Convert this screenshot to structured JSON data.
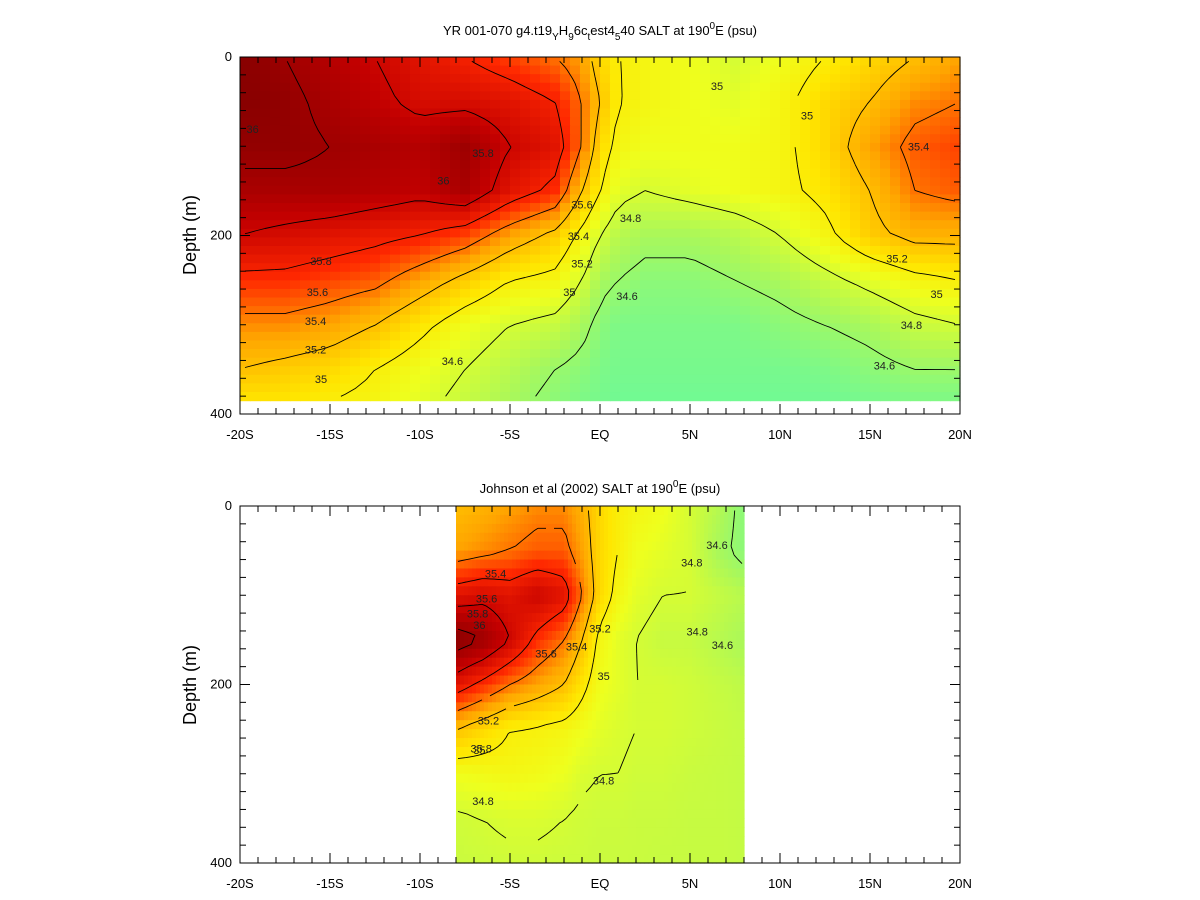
{
  "chart_data": [
    {
      "type": "heatmap",
      "title": {
        "pre": "YR 001-070 g4.t19",
        "s1": "Y",
        "m1": "H",
        "s2": "9",
        "m2": "6c",
        "s3": "t",
        "m3": "est4",
        "s4": "5",
        "m4": "40 SALT at 190",
        "sup": "0",
        "post": "E (psu)"
      },
      "ylabel": "Depth (m)",
      "xlim": [
        -20,
        20
      ],
      "ylim": [
        0,
        400
      ],
      "y_inverted": true,
      "data_xlim": [
        -20,
        20
      ],
      "data_ylim": [
        0,
        385
      ],
      "x_ticks": [
        {
          "v": -20,
          "label": "-20S"
        },
        {
          "v": -15,
          "label": "-15S"
        },
        {
          "v": -10,
          "label": "-10S"
        },
        {
          "v": -5,
          "label": "-5S"
        },
        {
          "v": 0,
          "label": "EQ"
        },
        {
          "v": 5,
          "label": "5N"
        },
        {
          "v": 10,
          "label": "10N"
        },
        {
          "v": 15,
          "label": "15N"
        },
        {
          "v": 20,
          "label": "20N"
        }
      ],
      "y_ticks": [
        {
          "v": 0,
          "label": "0"
        },
        {
          "v": 200,
          "label": "200"
        },
        {
          "v": 400,
          "label": "400"
        }
      ],
      "colorscale": {
        "min": 34.4,
        "max": 36.2
      },
      "field": {
        "lat": [
          -20,
          -17.5,
          -15,
          -12.5,
          -10,
          -7.5,
          -5,
          -2.5,
          -1,
          0,
          1,
          2.5,
          5,
          7.5,
          10,
          12.5,
          15,
          17.5,
          20
        ],
        "depth": [
          0,
          50,
          100,
          150,
          200,
          250,
          300,
          350,
          385
        ],
        "salinity": [
          [
            36.1,
            36.0,
            35.9,
            35.8,
            35.7,
            35.6,
            35.5,
            35.4,
            35.3,
            35.1,
            35.0,
            34.95,
            34.9,
            34.8,
            34.9,
            35.0,
            35.1,
            35.2,
            35.3
          ],
          [
            36.1,
            36.05,
            35.95,
            35.85,
            35.75,
            35.75,
            35.7,
            35.6,
            35.4,
            35.2,
            35.0,
            34.95,
            34.9,
            34.85,
            34.95,
            35.1,
            35.2,
            35.35,
            35.4
          ],
          [
            36.05,
            36.05,
            36.0,
            35.95,
            35.9,
            36.0,
            35.8,
            35.7,
            35.4,
            35.1,
            34.95,
            34.9,
            34.9,
            34.9,
            34.95,
            35.1,
            35.3,
            35.45,
            35.5
          ],
          [
            35.95,
            35.95,
            35.95,
            35.9,
            35.85,
            35.95,
            35.7,
            35.55,
            35.2,
            35.0,
            34.85,
            34.8,
            34.85,
            34.9,
            34.95,
            35.05,
            35.2,
            35.4,
            35.45
          ],
          [
            35.8,
            35.75,
            35.7,
            35.65,
            35.6,
            35.5,
            35.3,
            35.15,
            34.95,
            34.8,
            34.7,
            34.65,
            34.65,
            34.7,
            34.8,
            34.95,
            35.15,
            35.25,
            35.25
          ],
          [
            35.55,
            35.55,
            35.5,
            35.45,
            35.3,
            35.15,
            35.0,
            34.95,
            34.8,
            34.65,
            34.6,
            34.55,
            34.55,
            34.6,
            34.65,
            34.75,
            34.85,
            34.95,
            35.0
          ],
          [
            35.35,
            35.35,
            35.3,
            35.2,
            35.05,
            34.9,
            34.8,
            34.75,
            34.65,
            34.55,
            34.5,
            34.5,
            34.5,
            34.5,
            34.55,
            34.6,
            34.65,
            34.75,
            34.8
          ],
          [
            35.2,
            35.15,
            35.1,
            35.0,
            34.9,
            34.8,
            34.7,
            34.6,
            34.55,
            34.5,
            34.48,
            34.48,
            34.48,
            34.48,
            34.48,
            34.5,
            34.55,
            34.6,
            34.6
          ],
          [
            35.05,
            35.05,
            35.0,
            34.95,
            34.85,
            34.75,
            34.65,
            34.55,
            34.5,
            34.48,
            34.46,
            34.46,
            34.46,
            34.46,
            34.46,
            34.46,
            34.48,
            34.5,
            34.5
          ]
        ]
      },
      "contour_labels": [
        {
          "x": -19.3,
          "y": 85,
          "text": "36"
        },
        {
          "x": -6.5,
          "y": 112,
          "text": "35.8"
        },
        {
          "x": -8.7,
          "y": 143,
          "text": "36"
        },
        {
          "x": -1,
          "y": 170,
          "text": "35.6"
        },
        {
          "x": -1.2,
          "y": 205,
          "text": "35.4"
        },
        {
          "x": -1,
          "y": 236,
          "text": "35.2"
        },
        {
          "x": -1.7,
          "y": 268,
          "text": "35"
        },
        {
          "x": 1.5,
          "y": 272,
          "text": "34.6"
        },
        {
          "x": 1.7,
          "y": 185,
          "text": "34.8"
        },
        {
          "x": 6.5,
          "y": 37,
          "text": "35"
        },
        {
          "x": 11.5,
          "y": 70,
          "text": "35"
        },
        {
          "x": 17.7,
          "y": 105,
          "text": "35.4"
        },
        {
          "x": 16.5,
          "y": 230,
          "text": "35.2"
        },
        {
          "x": 18.7,
          "y": 270,
          "text": "35"
        },
        {
          "x": 17.3,
          "y": 305,
          "text": "34.8"
        },
        {
          "x": 15.8,
          "y": 350,
          "text": "34.6"
        },
        {
          "x": -15.5,
          "y": 233,
          "text": "35.8"
        },
        {
          "x": -15.7,
          "y": 268,
          "text": "35.6"
        },
        {
          "x": -15.8,
          "y": 300,
          "text": "35.4"
        },
        {
          "x": -15.8,
          "y": 332,
          "text": "35.2"
        },
        {
          "x": -15.5,
          "y": 365,
          "text": "35"
        },
        {
          "x": -8.2,
          "y": 345,
          "text": "34.6"
        }
      ]
    },
    {
      "type": "heatmap",
      "title": {
        "pre": "Johnson et al (2002) SALT at 190",
        "sup": "0",
        "post": "E (psu)"
      },
      "ylabel": "Depth (m)",
      "xlim": [
        -20,
        20
      ],
      "ylim": [
        0,
        400
      ],
      "y_inverted": true,
      "data_xlim": [
        -8,
        8
      ],
      "data_ylim": [
        0,
        400
      ],
      "x_ticks": [
        {
          "v": -20,
          "label": "-20S"
        },
        {
          "v": -15,
          "label": "-15S"
        },
        {
          "v": -10,
          "label": "-10S"
        },
        {
          "v": -5,
          "label": "-5S"
        },
        {
          "v": 0,
          "label": "EQ"
        },
        {
          "v": 5,
          "label": "5N"
        },
        {
          "v": 10,
          "label": "10N"
        },
        {
          "v": 15,
          "label": "15N"
        },
        {
          "v": 20,
          "label": "20N"
        }
      ],
      "y_ticks": [
        {
          "v": 0,
          "label": "0"
        },
        {
          "v": 200,
          "label": "200"
        },
        {
          "v": 400,
          "label": "400"
        }
      ],
      "colorscale": {
        "min": 34.4,
        "max": 36.2
      },
      "field": {
        "lat": [
          -8,
          -6.5,
          -5,
          -3.5,
          -2,
          -1,
          0,
          1,
          2,
          3.5,
          5,
          6.5,
          8
        ],
        "depth": [
          0,
          50,
          100,
          150,
          200,
          250,
          300,
          350,
          400
        ],
        "salinity": [
          [
            35.2,
            35.25,
            35.3,
            35.35,
            35.35,
            35.25,
            35.1,
            35.0,
            34.95,
            34.9,
            34.8,
            34.7,
            34.55
          ],
          [
            35.3,
            35.35,
            35.4,
            35.45,
            35.45,
            35.3,
            35.1,
            35.0,
            34.9,
            34.85,
            34.8,
            34.65,
            34.55
          ],
          [
            35.7,
            35.75,
            35.7,
            35.8,
            35.7,
            35.4,
            35.1,
            34.95,
            34.85,
            34.8,
            34.8,
            34.75,
            34.7
          ],
          [
            36.1,
            36.0,
            35.8,
            35.55,
            35.4,
            35.2,
            34.95,
            34.85,
            34.8,
            34.75,
            34.75,
            34.7,
            34.65
          ],
          [
            35.7,
            35.55,
            35.4,
            35.3,
            35.2,
            35.05,
            34.9,
            34.85,
            34.8,
            34.8,
            34.78,
            34.75,
            34.72
          ],
          [
            35.2,
            35.1,
            35.0,
            34.98,
            34.95,
            34.9,
            34.85,
            34.82,
            34.8,
            34.8,
            34.78,
            34.76,
            34.74
          ],
          [
            34.9,
            34.92,
            34.94,
            34.92,
            34.88,
            34.82,
            34.8,
            34.8,
            34.78,
            34.78,
            34.76,
            34.75,
            34.74
          ],
          [
            34.78,
            34.8,
            34.82,
            34.82,
            34.8,
            34.78,
            34.77,
            34.77,
            34.76,
            34.76,
            34.75,
            34.75,
            34.74
          ],
          [
            34.76,
            34.77,
            34.78,
            34.78,
            34.77,
            34.77,
            34.76,
            34.76,
            34.76,
            34.75,
            34.75,
            34.75,
            34.74
          ]
        ]
      },
      "contour_labels": [
        {
          "x": -5.8,
          "y": 80,
          "text": "35.4"
        },
        {
          "x": -6.3,
          "y": 108,
          "text": "35.6"
        },
        {
          "x": -6.8,
          "y": 125,
          "text": "35.8"
        },
        {
          "x": -6.7,
          "y": 138,
          "text": "36"
        },
        {
          "x": -3,
          "y": 170,
          "text": "35.6"
        },
        {
          "x": -1.3,
          "y": 162,
          "text": "35.4"
        },
        {
          "x": 0,
          "y": 142,
          "text": "35.2"
        },
        {
          "x": 0.2,
          "y": 195,
          "text": "35"
        },
        {
          "x": 5.1,
          "y": 68,
          "text": "34.8"
        },
        {
          "x": 6.5,
          "y": 48,
          "text": "34.6"
        },
        {
          "x": 5.4,
          "y": 145,
          "text": "34.8"
        },
        {
          "x": 6.8,
          "y": 160,
          "text": "34.6"
        },
        {
          "x": -6.2,
          "y": 245,
          "text": "35.2"
        },
        {
          "x": -6.6,
          "y": 276,
          "text": "35.8"
        },
        {
          "x": -6.7,
          "y": 278,
          "text": "35"
        },
        {
          "x": 0.2,
          "y": 312,
          "text": "34.8"
        },
        {
          "x": -6.5,
          "y": 335,
          "text": "34.8"
        }
      ]
    }
  ]
}
